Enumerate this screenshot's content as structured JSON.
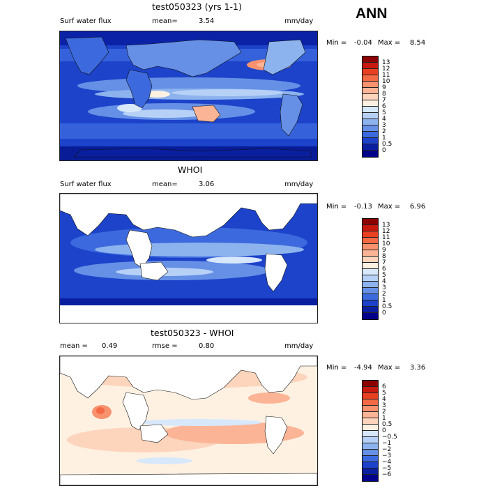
{
  "season": "ANN",
  "panels": [
    {
      "title": "test050323 (yrs 1-1)",
      "variable": "Surf water flux",
      "stat_label": "mean=",
      "stat_value": "3.54",
      "units": "mm/day",
      "min_label": "Min =",
      "min_value": "-0.04",
      "max_label": "Max =",
      "max_value": "8.54"
    },
    {
      "title": "WHOI",
      "variable": "Surf water flux",
      "stat_label": "mean=",
      "stat_value": "3.06",
      "units": "mm/day",
      "min_label": "Min =",
      "min_value": "-0.13",
      "max_label": "Max =",
      "max_value": "6.96"
    },
    {
      "title": "test050323 - WHOI",
      "mean_label": "mean =",
      "mean_value": "0.49",
      "rmse_label": "rmse =",
      "rmse_value": "0.80",
      "units": "mm/day",
      "min_label": "Min =",
      "min_value": "-4.94",
      "max_label": "Max =",
      "max_value": "3.36"
    }
  ],
  "colorbars": [
    {
      "labels": [
        "13",
        "12",
        "11",
        "10",
        "9",
        "8",
        "7",
        "6",
        "5",
        "4",
        "3",
        "2",
        "1",
        "0.5",
        "0"
      ],
      "colors": [
        "#8c0000",
        "#c8190f",
        "#e84020",
        "#f46a45",
        "#f8926e",
        "#fbb596",
        "#fdd5bd",
        "#fff1e2",
        "#d8e8fb",
        "#b7d1f6",
        "#8db3ee",
        "#6690e6",
        "#3c6ade",
        "#1b42c8",
        "#0a1fa0",
        "#00008a"
      ]
    },
    {
      "labels": [
        "6",
        "5",
        "4",
        "3",
        "2",
        "1",
        "0.5",
        "0",
        "−0.5",
        "−1",
        "−2",
        "−3",
        "−4",
        "−5",
        "−6"
      ],
      "colors": [
        "#8c0000",
        "#c8190f",
        "#e84020",
        "#f46a45",
        "#f8926e",
        "#fbb596",
        "#fdd5bd",
        "#fff1e2",
        "#d8e8fb",
        "#b7d1f6",
        "#8db3ee",
        "#6690e6",
        "#3c6ade",
        "#1b42c8",
        "#0a1fa0",
        "#00008a"
      ]
    }
  ]
}
